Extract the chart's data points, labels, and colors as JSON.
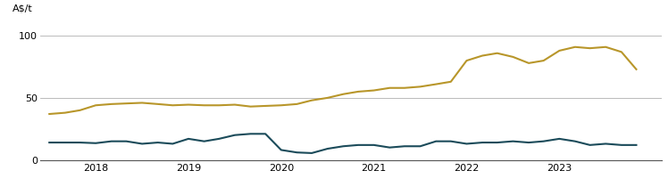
{
  "title": "",
  "ylabel": "A$/t",
  "ylim": [
    0,
    110
  ],
  "yticks": [
    0,
    50,
    100
  ],
  "xlim_start": 2017.4,
  "xlim_end": 2024.1,
  "xtick_labels": [
    "2018",
    "2019",
    "2020",
    "2021",
    "2022",
    "2023"
  ],
  "xtick_positions": [
    2018,
    2019,
    2020,
    2021,
    2022,
    2023
  ],
  "gold_color": "#B8962A",
  "teal_color": "#1B4B5A",
  "background_color": "#ffffff",
  "grid_color": "#b0b0b0",
  "line_width": 1.5,
  "gold_x": [
    2017.5,
    2017.67,
    2017.83,
    2018.0,
    2018.17,
    2018.33,
    2018.5,
    2018.67,
    2018.83,
    2019.0,
    2019.17,
    2019.33,
    2019.5,
    2019.67,
    2019.83,
    2020.0,
    2020.17,
    2020.33,
    2020.5,
    2020.67,
    2020.83,
    2021.0,
    2021.17,
    2021.33,
    2021.5,
    2021.67,
    2021.83,
    2022.0,
    2022.17,
    2022.33,
    2022.5,
    2022.67,
    2022.83,
    2023.0,
    2023.17,
    2023.33,
    2023.5,
    2023.67,
    2023.83
  ],
  "gold_y": [
    37,
    38,
    40,
    44,
    45,
    45.5,
    46,
    45,
    44,
    44.5,
    44,
    44,
    44.5,
    43,
    43.5,
    44,
    45,
    48,
    50,
    53,
    55,
    56,
    58,
    58,
    59,
    61,
    63,
    80,
    84,
    86,
    83,
    78,
    80,
    88,
    91,
    90,
    91,
    87,
    73
  ],
  "teal_x": [
    2017.5,
    2017.67,
    2017.83,
    2018.0,
    2018.17,
    2018.33,
    2018.5,
    2018.67,
    2018.83,
    2019.0,
    2019.17,
    2019.33,
    2019.5,
    2019.67,
    2019.83,
    2020.0,
    2020.17,
    2020.33,
    2020.5,
    2020.67,
    2020.83,
    2021.0,
    2021.17,
    2021.33,
    2021.5,
    2021.67,
    2021.83,
    2022.0,
    2022.17,
    2022.33,
    2022.5,
    2022.67,
    2022.83,
    2023.0,
    2023.17,
    2023.33,
    2023.5,
    2023.67,
    2023.83
  ],
  "teal_y": [
    14,
    14,
    14,
    13.5,
    15,
    15,
    13,
    14,
    13,
    17,
    15,
    17,
    20,
    21,
    21,
    8,
    6,
    5.5,
    9,
    11,
    12,
    12,
    10,
    11,
    11,
    15,
    15,
    13,
    14,
    14,
    15,
    14,
    15,
    17,
    15,
    12,
    13,
    12,
    12
  ]
}
